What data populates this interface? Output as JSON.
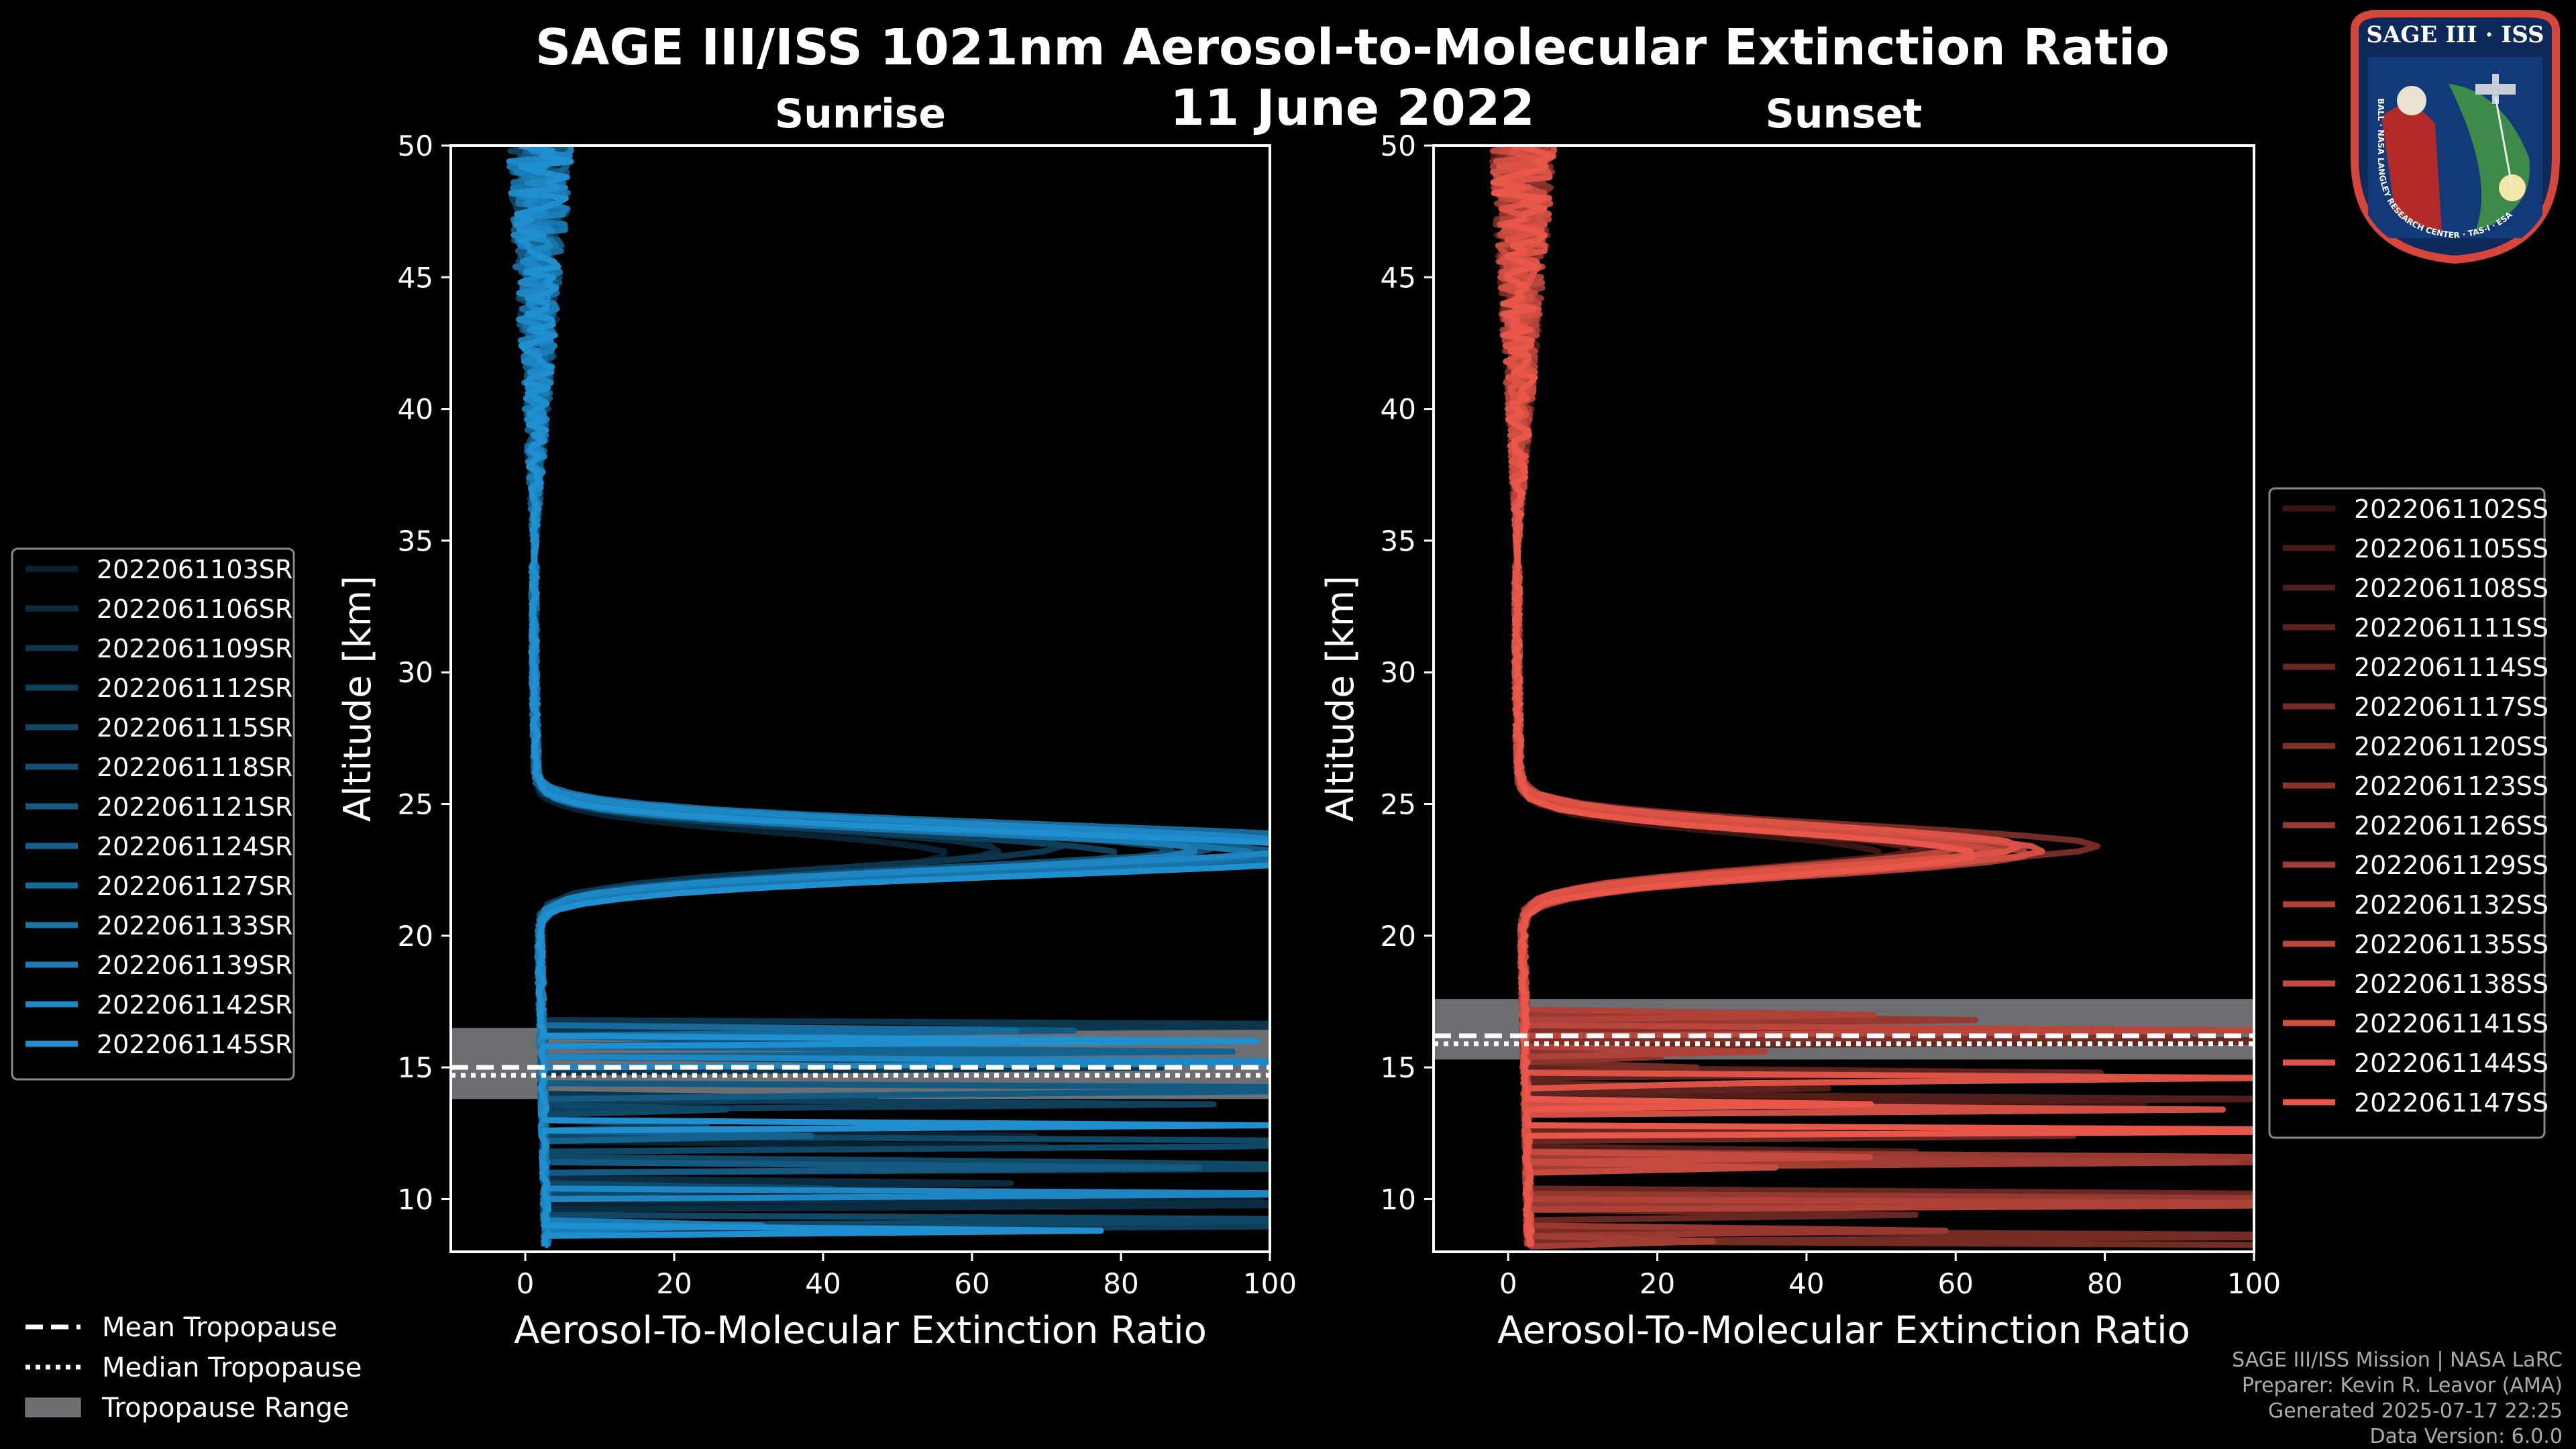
{
  "chart_data": {
    "type": "line",
    "title": "SAGE III/ISS 1021nm Aerosol-to-Molecular Extinction Ratio",
    "subtitle": "11 June 2022",
    "xlabel": "Aerosol-To-Molecular Extinction Ratio",
    "ylabel": "Altitude [km]",
    "xlim": [
      -10,
      100
    ],
    "ylim": [
      8,
      50
    ],
    "x_ticks": [
      "0",
      "20",
      "40",
      "60",
      "80",
      "100"
    ],
    "y_ticks": [
      "10",
      "15",
      "20",
      "25",
      "30",
      "35",
      "40",
      "45",
      "50"
    ],
    "panels": [
      {
        "title": "Sunrise",
        "color": "#1f8fd0",
        "tropopause": {
          "mean": 15.0,
          "median": 14.7,
          "range": [
            13.8,
            16.5
          ]
        },
        "series": [
          {
            "name": "2022061103SR",
            "peak": 55
          },
          {
            "name": "2022061106SR",
            "peak": 62
          },
          {
            "name": "2022061109SR",
            "peak": 70
          },
          {
            "name": "2022061112SR",
            "peak": 78
          },
          {
            "name": "2022061115SR",
            "peak": 85
          },
          {
            "name": "2022061118SR",
            "peak": 92
          },
          {
            "name": "2022061121SR",
            "peak": 100
          },
          {
            "name": "2022061124SR",
            "peak": 110
          },
          {
            "name": "2022061127SR",
            "peak": 120
          },
          {
            "name": "2022061133SR",
            "peak": 96
          },
          {
            "name": "2022061139SR",
            "peak": 88
          },
          {
            "name": "2022061142SR",
            "peak": 105
          },
          {
            "name": "2022061145SR",
            "peak": 115
          }
        ]
      },
      {
        "title": "Sunset",
        "color": "#e8574a",
        "tropopause": {
          "mean": 16.2,
          "median": 15.9,
          "range": [
            15.3,
            17.6
          ]
        },
        "series": [
          {
            "name": "2022061102SS",
            "peak": 48
          },
          {
            "name": "2022061105SS",
            "peak": 52
          },
          {
            "name": "2022061108SS",
            "peak": 55
          },
          {
            "name": "2022061111SS",
            "peak": 58
          },
          {
            "name": "2022061114SS",
            "peak": 60
          },
          {
            "name": "2022061117SS",
            "peak": 77
          },
          {
            "name": "2022061120SS",
            "peak": 62
          },
          {
            "name": "2022061123SS",
            "peak": 64
          },
          {
            "name": "2022061126SS",
            "peak": 66
          },
          {
            "name": "2022061129SS",
            "peak": 68
          },
          {
            "name": "2022061132SS",
            "peak": 63
          },
          {
            "name": "2022061135SS",
            "peak": 59
          },
          {
            "name": "2022061138SS",
            "peak": 65
          },
          {
            "name": "2022061141SS",
            "peak": 70
          },
          {
            "name": "2022061144SS",
            "peak": 67
          },
          {
            "name": "2022061147SS",
            "peak": 61
          }
        ]
      }
    ],
    "tropopause_legend": [
      "Mean Tropopause",
      "Median Tropopause",
      "Tropopause Range"
    ]
  },
  "footer": {
    "line1": "SAGE III/ISS Mission | NASA LaRC",
    "line2": "Preparer: Kevin R. Leavor (AMA)",
    "line3": "Generated 2025-07-17 22:25",
    "line4": "Data Version: 6.0.0"
  },
  "logo": {
    "top": "SAGE III · ISS",
    "ring": "BALL · NASA LANGLEY RESEARCH CENTER · TAS-I · ESA"
  }
}
